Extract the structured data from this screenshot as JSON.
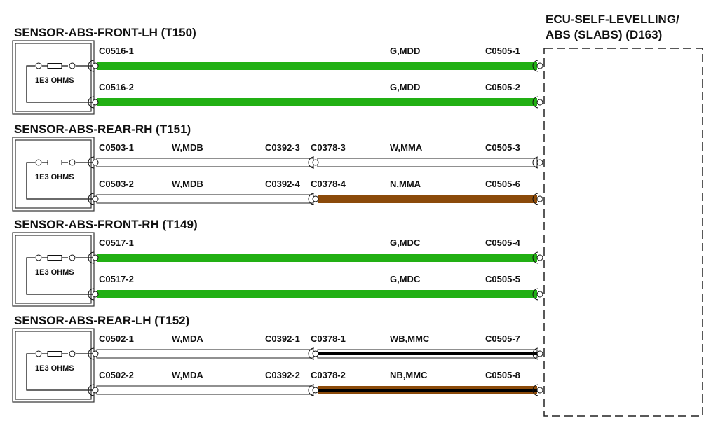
{
  "ecu": {
    "title_line1": "ECU-SELF-LEVELLING/",
    "title_line2": "ABS (SLABS) (D163)"
  },
  "wire_colors": {
    "G": "#22b014",
    "W": "#ffffff",
    "N": "#8b4a0a",
    "WB": "#ffffff",
    "NB": "#8b4a0a",
    "stripe": "#000000"
  },
  "sections": [
    {
      "title": "SENSOR-ABS-FRONT-LH (T150)",
      "resistor": "1E3 OHMS",
      "wires": [
        {
          "from_pin": "C0516-1",
          "from_color": "",
          "splice_a": "",
          "splice_b": "",
          "code": "G,MDD",
          "to_pin": "C0505-1",
          "first_color": "G",
          "second_color": "G"
        },
        {
          "from_pin": "C0516-2",
          "from_color": "",
          "splice_a": "",
          "splice_b": "",
          "code": "G,MDD",
          "to_pin": "C0505-2",
          "first_color": "G",
          "second_color": "G"
        }
      ]
    },
    {
      "title": "SENSOR-ABS-REAR-RH (T151)",
      "resistor": "1E3 OHMS",
      "wires": [
        {
          "from_pin": "C0503-1",
          "from_color": "W,MDB",
          "splice_a": "C0392-3",
          "splice_b": "C0378-3",
          "code": "W,MMA",
          "to_pin": "C0505-3",
          "first_color": "W",
          "second_color": "W"
        },
        {
          "from_pin": "C0503-2",
          "from_color": "W,MDB",
          "splice_a": "C0392-4",
          "splice_b": "C0378-4",
          "code": "N,MMA",
          "to_pin": "C0505-6",
          "first_color": "W",
          "second_color": "N"
        }
      ]
    },
    {
      "title": "SENSOR-ABS-FRONT-RH (T149)",
      "resistor": "1E3 OHMS",
      "wires": [
        {
          "from_pin": "C0517-1",
          "from_color": "",
          "splice_a": "",
          "splice_b": "",
          "code": "G,MDC",
          "to_pin": "C0505-4",
          "first_color": "G",
          "second_color": "G"
        },
        {
          "from_pin": "C0517-2",
          "from_color": "",
          "splice_a": "",
          "splice_b": "",
          "code": "G,MDC",
          "to_pin": "C0505-5",
          "first_color": "G",
          "second_color": "G"
        }
      ]
    },
    {
      "title": "SENSOR-ABS-REAR-LH (T152)",
      "resistor": "1E3 OHMS",
      "wires": [
        {
          "from_pin": "C0502-1",
          "from_color": "W,MDA",
          "splice_a": "C0392-1",
          "splice_b": "C0378-1",
          "code": "WB,MMC",
          "to_pin": "C0505-7",
          "first_color": "W",
          "second_color": "WB"
        },
        {
          "from_pin": "C0502-2",
          "from_color": "W,MDA",
          "splice_a": "C0392-2",
          "splice_b": "C0378-2",
          "code": "NB,MMC",
          "to_pin": "C0505-8",
          "first_color": "W",
          "second_color": "NB"
        }
      ]
    }
  ]
}
